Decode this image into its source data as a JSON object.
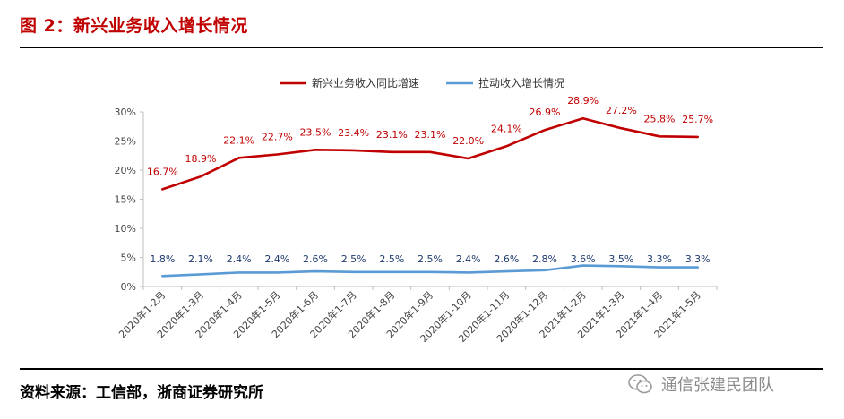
{
  "header": {
    "title": "图 2：新兴业务收入增长情况"
  },
  "footer": {
    "source": "资料来源：工信部，浙商证券研究所",
    "watermark": "通信张建民团队"
  },
  "colors": {
    "title": "#c00000",
    "series1": "#c00000",
    "series2": "#5b9bd5"
  },
  "chart_data": {
    "type": "line",
    "title": "",
    "xlabel": "",
    "ylabel": "",
    "ylim": [
      0,
      30
    ],
    "yticks": [
      "0%",
      "5%",
      "10%",
      "15%",
      "20%",
      "25%",
      "30%"
    ],
    "yticks_values": [
      0,
      5,
      10,
      15,
      20,
      25,
      30
    ],
    "legend_position": "top-center",
    "categories": [
      "2020年1-2月",
      "2020年1-3月",
      "2020年1-4月",
      "2020年1-5月",
      "2020年1-6月",
      "2020年1-7月",
      "2020年1-8月",
      "2020年1-9月",
      "2020年1-10月",
      "2020年1-11月",
      "2020年1-12月",
      "2021年1-2月",
      "2021年1-3月",
      "2021年1-4月",
      "2021年1-5月"
    ],
    "series": [
      {
        "name": "新兴业务收入同比增速",
        "color": "#c00000",
        "label_color": "#c00000",
        "values": [
          16.7,
          18.9,
          22.1,
          22.7,
          23.5,
          23.4,
          23.1,
          23.1,
          22.0,
          24.1,
          26.9,
          28.9,
          27.2,
          25.8,
          25.7
        ],
        "labels": [
          "16.7%",
          "18.9%",
          "22.1%",
          "22.7%",
          "23.5%",
          "23.4%",
          "23.1%",
          "23.1%",
          "22.0%",
          "24.1%",
          "26.9%",
          "28.9%",
          "27.2%",
          "25.8%",
          "25.7%"
        ]
      },
      {
        "name": "拉动收入增长情况",
        "color": "#5b9bd5",
        "label_color": "#1f3a6e",
        "values": [
          1.8,
          2.1,
          2.4,
          2.4,
          2.6,
          2.5,
          2.5,
          2.5,
          2.4,
          2.6,
          2.8,
          3.6,
          3.5,
          3.3,
          3.3
        ],
        "labels": [
          "1.8%",
          "2.1%",
          "2.4%",
          "2.4%",
          "2.6%",
          "2.5%",
          "2.5%",
          "2.5%",
          "2.4%",
          "2.6%",
          "2.8%",
          "3.6%",
          "3.5%",
          "3.3%",
          "3.3%"
        ]
      }
    ]
  }
}
